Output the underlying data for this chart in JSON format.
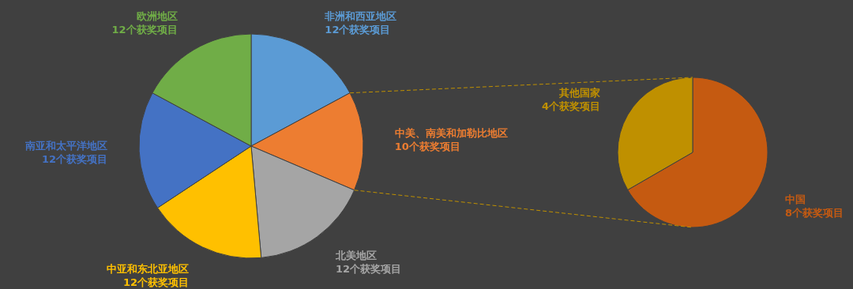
{
  "chart_data": [
    {
      "type": "pie",
      "categories": [
        "非洲和西亚地区",
        "中美、南美和加勒比地区",
        "北美地区",
        "中亚和东北亚地区",
        "南亚和太平洋地区",
        "欧洲地区"
      ],
      "values": [
        12,
        10,
        12,
        12,
        12,
        12
      ],
      "colors": [
        "#5b9bd5",
        "#ed7d31",
        "#a5a5a5",
        "#ffc000",
        "#4472c4",
        "#70ad47"
      ],
      "value_labels": [
        "12个获奖项目",
        "10个获奖项目",
        "12个获奖项目",
        "12个获奖项目",
        "12个获奖项目",
        "12个获奖项目"
      ]
    },
    {
      "type": "pie",
      "categories": [
        "中国",
        "其他国家"
      ],
      "values": [
        8,
        4
      ],
      "colors": [
        "#c55a11",
        "#bf9000"
      ],
      "value_labels": [
        "8个获奖项目",
        "4个获奖项目"
      ]
    }
  ]
}
